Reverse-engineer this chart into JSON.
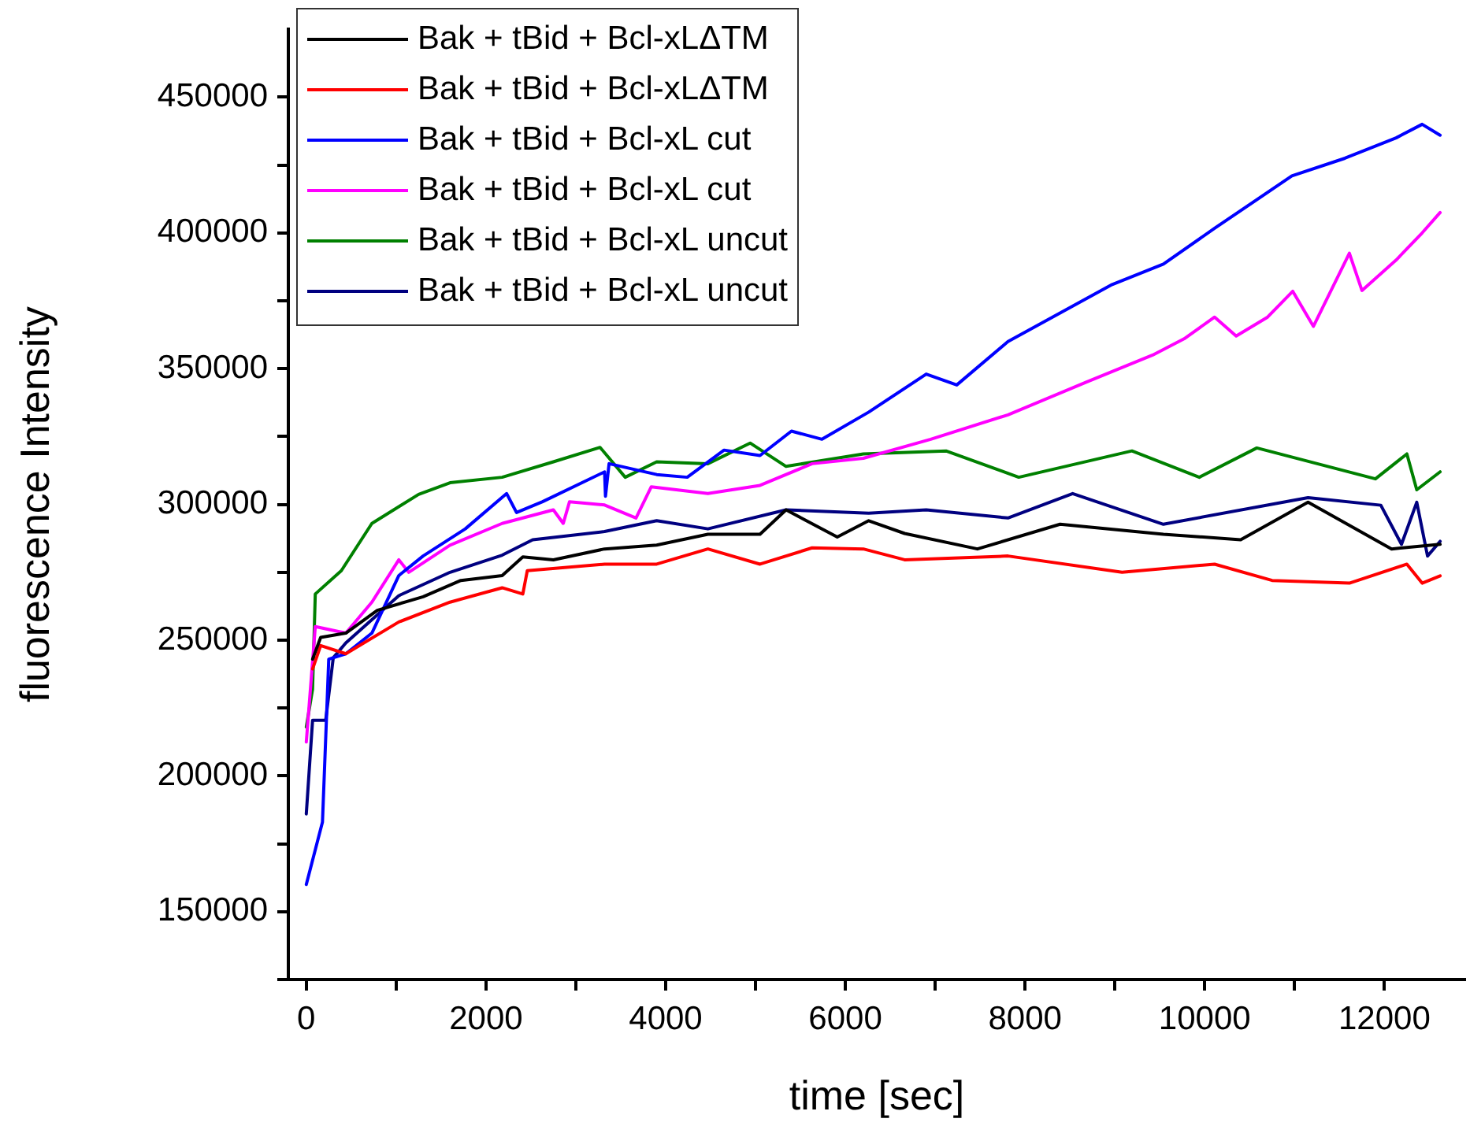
{
  "chart_data": {
    "type": "line",
    "xlabel": "time [sec]",
    "ylabel": "fluorescence Intensity",
    "xlim": [
      -200,
      12900
    ],
    "ylim": [
      125000,
      475000
    ],
    "xticks": [
      0,
      {
        "value": 1000,
        "label": null
      },
      2000,
      {
        "value": 3000,
        "label": null
      },
      4000,
      {
        "value": 5000,
        "label": null
      },
      6000,
      {
        "value": 7000,
        "label": null
      },
      8000,
      {
        "value": 9000,
        "label": null
      },
      10000,
      {
        "value": 11000,
        "label": null
      },
      12000
    ],
    "yticks": [
      {
        "value": 125000,
        "label": null
      },
      150000,
      {
        "value": 175000,
        "label": null
      },
      200000,
      {
        "value": 225000,
        "label": null
      },
      250000,
      {
        "value": 275000,
        "label": null
      },
      300000,
      {
        "value": 325000,
        "label": null
      },
      350000,
      {
        "value": 375000,
        "label": null
      },
      400000,
      {
        "value": 425000,
        "label": null
      },
      450000
    ],
    "grid": false,
    "legend": "top left",
    "marker": "none",
    "line_style": "solid",
    "series": [
      {
        "name": "Bak + tBid + Bcl-xLΔTM",
        "color": "#000000",
        "x": [
          70,
          160,
          440,
          790,
          1300,
          1720,
          2180,
          2410,
          2750,
          3320,
          3900,
          4470,
          5050,
          5340,
          5910,
          6260,
          6660,
          7470,
          8390,
          9540,
          10400,
          11150,
          12080,
          12620
        ],
        "values": [
          243000,
          251000,
          252600,
          261000,
          266000,
          272000,
          273800,
          280700,
          279600,
          283600,
          285000,
          289000,
          289000,
          298000,
          288000,
          294000,
          289300,
          283600,
          292700,
          289000,
          287000,
          300800,
          283600,
          285300
        ]
      },
      {
        "name": "Bak + tBid + Bcl-xLΔTM",
        "color": "#ff0000",
        "x": [
          70,
          160,
          440,
          1030,
          1600,
          2180,
          2410,
          2460,
          3320,
          3900,
          4470,
          5050,
          5630,
          6200,
          6660,
          7810,
          9080,
          10110,
          10750,
          11610,
          12250,
          12420,
          12620
        ],
        "values": [
          239400,
          248000,
          245000,
          256700,
          264000,
          269300,
          267000,
          275600,
          278000,
          278000,
          283600,
          278000,
          284000,
          283600,
          279600,
          281000,
          275000,
          278000,
          272000,
          271000,
          278000,
          271000,
          273700
        ]
      },
      {
        "name": "Bak + tBid + Bcl-xL cut",
        "color": "#0000ff",
        "x": [
          0,
          180,
          250,
          440,
          730,
          1030,
          1300,
          1770,
          2230,
          2340,
          2630,
          3320,
          3330,
          3370,
          3900,
          4240,
          4650,
          5050,
          5400,
          5740,
          6260,
          6900,
          7240,
          7810,
          8970,
          9540,
          10110,
          10970,
          11560,
          12130,
          12420,
          12620
        ],
        "values": [
          160000,
          183000,
          243000,
          245000,
          252600,
          273800,
          281000,
          291000,
          304000,
          297000,
          301000,
          312000,
          303000,
          315000,
          311000,
          310000,
          320000,
          318000,
          327000,
          324000,
          334000,
          348000,
          344000,
          360000,
          381000,
          388500,
          401700,
          421000,
          427500,
          435000,
          440000,
          436000
        ]
      },
      {
        "name": "Bak + tBid + Bcl-xL cut",
        "color": "#ff00ff",
        "x": [
          0,
          100,
          440,
          730,
          1030,
          1140,
          1600,
          2180,
          2750,
          2860,
          2930,
          3320,
          3670,
          3840,
          4470,
          5050,
          5630,
          6200,
          6950,
          7810,
          8680,
          9420,
          9770,
          10110,
          10350,
          10700,
          10980,
          11210,
          11610,
          11750,
          12130,
          12420,
          12620
        ],
        "values": [
          212500,
          255000,
          252600,
          264000,
          279600,
          275000,
          285000,
          293000,
          298000,
          293000,
          301000,
          299800,
          295000,
          306500,
          304000,
          307000,
          315000,
          317000,
          324000,
          333000,
          345000,
          355000,
          361000,
          369000,
          362000,
          369000,
          378500,
          365600,
          392500,
          378800,
          390000,
          400000,
          407500
        ]
      },
      {
        "name": "Bak + tBid + Bcl-xL uncut",
        "color": "#008000",
        "x": [
          0,
          70,
          100,
          390,
          730,
          1250,
          1600,
          2180,
          2750,
          3270,
          3550,
          3900,
          4470,
          4940,
          5340,
          6200,
          7120,
          7930,
          9190,
          9940,
          10580,
          11900,
          12250,
          12360,
          12620
        ],
        "values": [
          218000,
          232000,
          267000,
          275600,
          293000,
          303700,
          308000,
          310000,
          315700,
          321000,
          310000,
          315700,
          315000,
          322600,
          314000,
          318600,
          319700,
          310000,
          319700,
          310000,
          320800,
          309400,
          318600,
          305400,
          312000
        ]
      },
      {
        "name": "Bak + tBid + Bcl-xL uncut",
        "color": "#000080",
        "x": [
          0,
          70,
          216,
          300,
          440,
          1030,
          1600,
          2180,
          2520,
          3320,
          3900,
          4470,
          5340,
          6260,
          6900,
          7810,
          8530,
          9540,
          11150,
          11960,
          12190,
          12360,
          12480,
          12620
        ],
        "values": [
          186000,
          220500,
          220500,
          243500,
          249000,
          266400,
          275000,
          281300,
          287000,
          290000,
          294000,
          291000,
          298000,
          296800,
          298000,
          295000,
          304000,
          292700,
          302500,
          299700,
          285300,
          300800,
          281000,
          286400
        ]
      }
    ]
  }
}
